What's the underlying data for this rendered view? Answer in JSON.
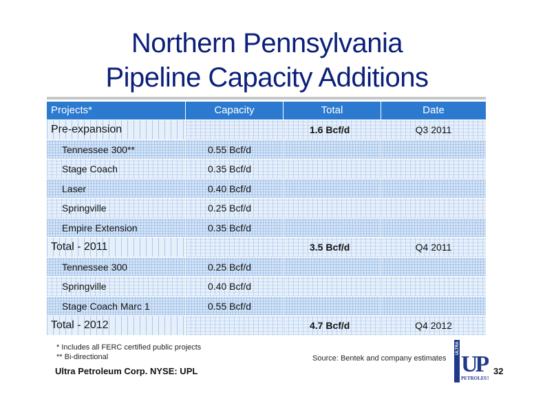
{
  "title": {
    "line1": "Northern Pennsylvania",
    "line2": "Pipeline Capacity Additions"
  },
  "table": {
    "headers": {
      "projects": "Projects*",
      "capacity": "Capacity",
      "total": "Total",
      "date": "Date"
    },
    "rows": [
      {
        "project": "Pre-expansion",
        "capacity": "",
        "total": "1.6 Bcf/d",
        "date": "Q3 2011"
      },
      {
        "project": "Tennessee 300**",
        "capacity": "0.55 Bcf/d",
        "total": "",
        "date": ""
      },
      {
        "project": "Stage Coach",
        "capacity": "0.35 Bcf/d",
        "total": "",
        "date": ""
      },
      {
        "project": "Laser",
        "capacity": "0.40 Bcf/d",
        "total": "",
        "date": ""
      },
      {
        "project": "Springville",
        "capacity": "0.25 Bcf/d",
        "total": "",
        "date": ""
      },
      {
        "project": "Empire Extension",
        "capacity": "0.35 Bcf/d",
        "total": "",
        "date": ""
      },
      {
        "project": "Total - 2011",
        "capacity": "",
        "total": "3.5 Bcf/d",
        "date": "Q4 2011"
      },
      {
        "project": "Tennessee 300",
        "capacity": "0.25 Bcf/d",
        "total": "",
        "date": ""
      },
      {
        "project": "Springville",
        "capacity": "0.40 Bcf/d",
        "total": "",
        "date": ""
      },
      {
        "project": "Stage Coach Marc 1",
        "capacity": "0.55 Bcf/d",
        "total": "",
        "date": ""
      },
      {
        "project": "Total - 2012",
        "capacity": "",
        "total": "4.7 Bcf/d",
        "date": "Q4 2012"
      }
    ]
  },
  "footnotes": {
    "note1": "* Includes all FERC certified public projects",
    "note2": "** Bi-directional",
    "source": "Source: Bentek and company estimates"
  },
  "footer": {
    "company": "Ultra Petroleum Corp.  NYSE: UPL",
    "page_number": "32"
  },
  "logo": {
    "top_text": "ULTRA",
    "letters": "UP",
    "bottom_text": "PETROLEUM"
  },
  "colors": {
    "title": "#0b1f7a",
    "header_bg": "#2b7ad0",
    "row_bg": "#e6f0fb",
    "logo": "#1f3a8a"
  }
}
